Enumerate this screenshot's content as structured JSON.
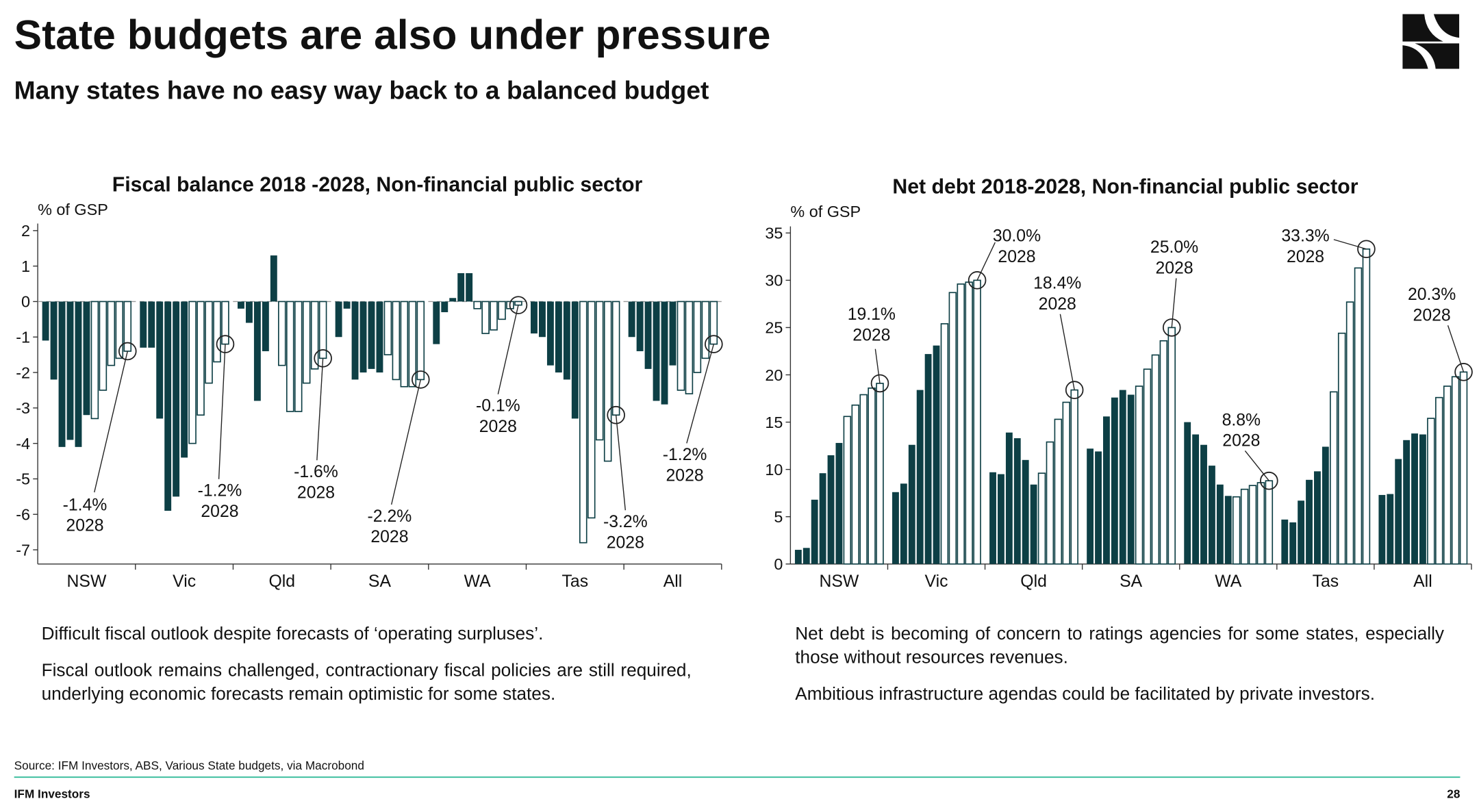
{
  "title": "State budgets are also under pressure",
  "subtitle": "Many states have no easy way back to a balanced budget",
  "paragraphs_left": [
    "Difficult fiscal outlook despite forecasts of ‘operating surpluses’.",
    "Fiscal outlook remains challenged, contractionary fiscal policies are still required, underlying economic forecasts remain optimistic for some states."
  ],
  "paragraphs_right": [
    "Net debt is becoming of concern to ratings agencies for some states, especially those without resources revenues.",
    "Ambitious infrastructure agendas could be facilitated by private investors."
  ],
  "source": "Source: IFM Investors, ABS, Various State budgets, via Macrobond",
  "footer": {
    "brand": "IFM Investors",
    "page": "28"
  },
  "chart_data": [
    {
      "type": "bar",
      "title": "Fiscal balance 2018 -2028, Non-financial public sector",
      "y_label": "% of GSP",
      "color": "#0d3f45",
      "ylim": [
        -7.4,
        2.2
      ],
      "yticks": [
        2,
        1,
        0,
        -1,
        -2,
        -3,
        -4,
        -5,
        -6,
        -7
      ],
      "categories": [
        "NSW",
        "Vic",
        "Qld",
        "SA",
        "WA",
        "Tas",
        "All"
      ],
      "groups": [
        {
          "actual": [
            -1.1,
            -2.2,
            -4.1,
            -3.9,
            -4.1,
            -3.2
          ],
          "forecast": [
            -3.3,
            -2.5,
            -1.8,
            -1.6,
            -1.4
          ],
          "annotation": {
            "label": "-1.4%",
            "year": "2028"
          }
        },
        {
          "actual": [
            -1.3,
            -1.3,
            -3.3,
            -5.9,
            -5.5,
            -4.4
          ],
          "forecast": [
            -4.0,
            -3.2,
            -2.3,
            -1.7,
            -1.2
          ],
          "annotation": {
            "label": "-1.2%",
            "year": "2028"
          }
        },
        {
          "actual": [
            -0.2,
            -0.6,
            -2.8,
            -1.4,
            1.3
          ],
          "forecast": [
            -1.8,
            -3.1,
            -3.1,
            -2.3,
            -1.9,
            -1.6
          ],
          "annotation": {
            "label": "-1.6%",
            "year": "2028"
          }
        },
        {
          "actual": [
            -1.0,
            -0.2,
            -2.2,
            -2.0,
            -1.9,
            -2.0
          ],
          "forecast": [
            -1.5,
            -2.2,
            -2.4,
            -2.4,
            -2.2
          ],
          "annotation": {
            "label": "-2.2%",
            "year": "2028"
          }
        },
        {
          "actual": [
            -1.2,
            -0.3,
            0.1,
            0.8,
            0.8
          ],
          "forecast": [
            -0.2,
            -0.9,
            -0.8,
            -0.5,
            -0.2,
            -0.1
          ],
          "annotation": {
            "label": "-0.1%",
            "year": "2028"
          }
        },
        {
          "actual": [
            -0.9,
            -1.0,
            -1.8,
            -2.0,
            -2.2,
            -3.3
          ],
          "forecast": [
            -6.8,
            -6.1,
            -3.9,
            -4.5,
            -3.2
          ],
          "annotation": {
            "label": "-3.2%",
            "year": "2028"
          }
        },
        {
          "actual": [
            -1.0,
            -1.4,
            -1.9,
            -2.8,
            -2.9,
            -1.8
          ],
          "forecast": [
            -2.5,
            -2.6,
            -2.0,
            -1.6,
            -1.2
          ],
          "annotation": {
            "label": "-1.2%",
            "year": "2028"
          }
        }
      ]
    },
    {
      "type": "bar",
      "title": "Net debt 2018-2028, Non-financial public sector",
      "y_label": "% of GSP",
      "color": "#0d3f45",
      "ylim": [
        0,
        35.7
      ],
      "yticks": [
        35,
        30,
        25,
        20,
        15,
        10,
        5,
        0
      ],
      "categories": [
        "NSW",
        "Vic",
        "Qld",
        "SA",
        "WA",
        "Tas",
        "All"
      ],
      "groups": [
        {
          "actual": [
            1.5,
            1.7,
            6.8,
            9.6,
            11.5,
            12.8
          ],
          "forecast": [
            15.6,
            16.8,
            17.9,
            18.6,
            19.1
          ],
          "annotation": {
            "label": "19.1%",
            "year": "2028"
          }
        },
        {
          "actual": [
            7.6,
            8.5,
            12.6,
            18.4,
            22.2,
            23.1
          ],
          "forecast": [
            25.4,
            28.7,
            29.6,
            29.8,
            30.0
          ],
          "annotation": {
            "label": "30.0%",
            "year": "2028"
          }
        },
        {
          "actual": [
            9.7,
            9.5,
            13.9,
            13.3,
            11.0,
            8.4
          ],
          "forecast": [
            9.6,
            12.9,
            15.3,
            17.1,
            18.4
          ],
          "annotation": {
            "label": "18.4%",
            "year": "2028"
          }
        },
        {
          "actual": [
            12.2,
            11.9,
            15.6,
            17.6,
            18.4,
            17.9
          ],
          "forecast": [
            18.8,
            20.6,
            22.1,
            23.6,
            25.0
          ],
          "annotation": {
            "label": "25.0%",
            "year": "2028"
          }
        },
        {
          "actual": [
            15.0,
            13.7,
            12.6,
            10.4,
            8.4,
            7.2
          ],
          "forecast": [
            7.1,
            7.9,
            8.3,
            8.6,
            8.8
          ],
          "annotation": {
            "label": "8.8%",
            "year": "2028"
          }
        },
        {
          "actual": [
            4.7,
            4.4,
            6.7,
            8.9,
            9.8,
            12.4
          ],
          "forecast": [
            18.2,
            24.4,
            27.7,
            31.3,
            33.3
          ],
          "annotation": {
            "label": "33.3%",
            "year": "2028"
          }
        },
        {
          "actual": [
            7.3,
            7.4,
            11.1,
            13.1,
            13.8,
            13.7
          ],
          "forecast": [
            15.4,
            17.6,
            18.8,
            19.8,
            20.3
          ],
          "annotation": {
            "label": "20.3%",
            "year": "2028"
          }
        }
      ]
    }
  ]
}
